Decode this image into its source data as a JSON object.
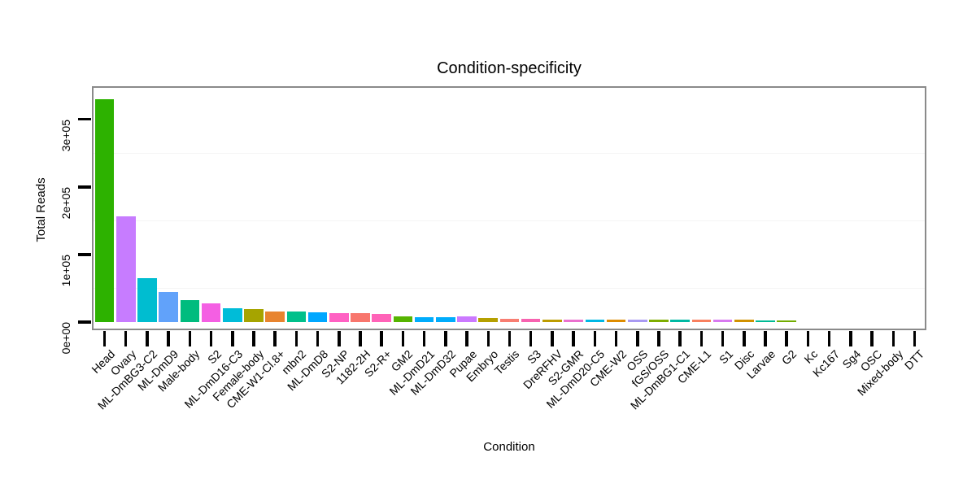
{
  "chart_data": {
    "type": "bar",
    "title": "Condition-specificity",
    "xlabel": "Condition",
    "ylabel": "Total Reads",
    "ylim": [
      0,
      350000
    ],
    "yticks": {
      "values": [
        0,
        100000,
        200000,
        300000
      ],
      "labels": [
        "0e+00",
        "1e+05",
        "2e+05",
        "3e+05"
      ]
    },
    "minor_gridline_values": [
      50000,
      150000,
      250000
    ],
    "legend_position": "none",
    "x_tick_label_angle_deg": 45,
    "y_tick_label_angle_deg": 90,
    "categories": [
      "Head",
      "Ovary",
      "ML-DmBG3-C2",
      "ML-DmD9",
      "Male-body",
      "S2",
      "ML-DmD16-C3",
      "Female-body",
      "CME-W1-Cl.8+",
      "mbn2",
      "ML-DmD8",
      "S2-NP",
      "1182-2H",
      "S2-R+",
      "GM2",
      "ML-DmD21",
      "ML-DmD32",
      "Pupae",
      "Embryo",
      "Testis",
      "S3",
      "DreRFHV",
      "S2-GMR",
      "ML-DmD20-C5",
      "CME-W2",
      "OSS",
      "fGS/OSS",
      "ML-DmBG1-C1",
      "CME-L1",
      "S1",
      "Disc",
      "Larvae",
      "G2",
      "Kc",
      "Kc167",
      "Sg4",
      "OSC",
      "Mixed-body",
      "DTT"
    ],
    "values": [
      330000,
      157000,
      65000,
      44000,
      33000,
      28000,
      20500,
      19000,
      16000,
      15500,
      14000,
      13000,
      13000,
      12000,
      8000,
      7200,
      7200,
      8700,
      6000,
      4800,
      5200,
      4000,
      3700,
      3600,
      3900,
      3500,
      3400,
      3200,
      3400,
      3200,
      3100,
      3000,
      2900,
      0,
      0,
      0,
      0,
      0,
      0
    ],
    "colors": [
      "#2DB200",
      "#C77CFF",
      "#00BDD0",
      "#61A2FA",
      "#00BC7E",
      "#F45FE3",
      "#00BCD8",
      "#A6A400",
      "#E8842F",
      "#00C08B",
      "#00A7FF",
      "#FF61C3",
      "#F8766D",
      "#FF63B8",
      "#56B400",
      "#00ACFC",
      "#00ACFC",
      "#CB79FF",
      "#B5A000",
      "#F87E72",
      "#F763B0",
      "#BD9C00",
      "#EA70CE",
      "#00B8E5",
      "#DE8C00",
      "#A99AF2",
      "#7EAD00",
      "#00B9A3",
      "#F8805F",
      "#D879F0",
      "#D19100",
      "#00BA94",
      "#72AC00",
      "#BBBBBB",
      "#BBBBBB",
      "#BBBBBB",
      "#BBBBBB",
      "#BBBBBB",
      "#BBBBBB"
    ]
  },
  "panel_style": {
    "border_color": "#8A8A8A",
    "background": "#FFFFFF",
    "minor_grid_color": "#F5F5F5",
    "tick_color": "#000000",
    "text_color": "#000000"
  }
}
